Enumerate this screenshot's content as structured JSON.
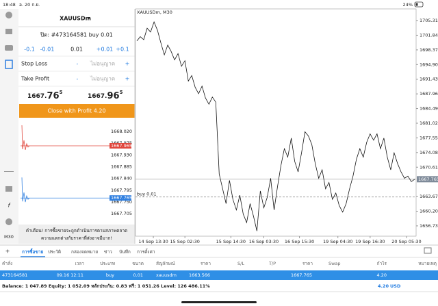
{
  "status_bar": {
    "time": "18:48",
    "date": "อ. 20 ก.ย.",
    "battery": "24%"
  },
  "order_panel": {
    "symbol": "XAUUSDm",
    "close_label": "ปิด: #473164581 buy 0.01",
    "volume_buttons": [
      "-0.1",
      "-0.01",
      "0.01",
      "+0.01",
      "+0.1"
    ],
    "stop_loss": {
      "label": "Stop Loss",
      "minus": "-",
      "value": "ไม่อนุญาต",
      "plus": "+"
    },
    "take_profit": {
      "label": "Take Profit",
      "minus": "-",
      "value": "ไม่อนุญาต",
      "plus": "+"
    },
    "bid": {
      "main": "1667.",
      "big": "76",
      "sup": "5"
    },
    "ask": {
      "main": "1667.",
      "big": "96",
      "sup": "5"
    },
    "close_button": "Close with Profit 4.20",
    "warning": [
      "คำเตือน! การซื้อขายจะถูกดำเนินการตามสภาพตลาด",
      "ความแตกต่างกับราคาที่ส่งอาจมีมาก!"
    ]
  },
  "mini_chart": {
    "ylim": [
      1667.679,
      1668.0515
    ],
    "yticks": [
      {
        "value": 1668.02,
        "label": "1668.020"
      },
      {
        "value": 1667.975,
        "label": "1667.975"
      },
      {
        "value": 1667.93,
        "label": "1667.930"
      },
      {
        "value": 1667.885,
        "label": "1667.885"
      },
      {
        "value": 1667.84,
        "label": "1667.840"
      },
      {
        "value": 1667.795,
        "label": "1667.795"
      },
      {
        "value": 1667.75,
        "label": "1667.750"
      },
      {
        "value": 1667.705,
        "label": "1667.705"
      }
    ],
    "ask": {
      "value": 1667.965,
      "label": "1667.965",
      "color": "#e0463c"
    },
    "bid": {
      "value": 1667.765,
      "label": "1667.765",
      "color": "#2f7fe0"
    }
  },
  "chart_data": {
    "type": "line",
    "title": "XAUUSDm, M30",
    "series": [
      {
        "name": "XAUUSDm",
        "color": "#111111",
        "values": [
          1700.5,
          1701.5,
          1700.8,
          1703.5,
          1702.6,
          1705.0,
          1703.0,
          1700.0,
          1697.2,
          1699.5,
          1698.0,
          1696.0,
          1697.5,
          1694.5,
          1695.8,
          1691.0,
          1692.3,
          1689.5,
          1688.0,
          1689.8,
          1687.0,
          1685.5,
          1687.2,
          1686.0,
          1669.0,
          1665.5,
          1662.0,
          1667.5,
          1663.0,
          1660.5,
          1664.0,
          1659.5,
          1657.5,
          1662.0,
          1659.0,
          1655.5,
          1665.0,
          1661.0,
          1663.5,
          1668.0,
          1660.5,
          1666.0,
          1671.0,
          1675.0,
          1673.0,
          1677.5,
          1672.0,
          1669.5,
          1674.0,
          1679.0,
          1678.0,
          1676.0,
          1671.5,
          1668.0,
          1670.0,
          1665.5,
          1667.0,
          1663.0,
          1664.5,
          1661.5,
          1660.0,
          1662.0,
          1665.5,
          1668.5,
          1672.5,
          1675.0,
          1673.0,
          1676.5,
          1678.5,
          1677.0,
          1678.5,
          1675.0,
          1677.5,
          1673.0,
          1670.0,
          1674.0,
          1671.5,
          1669.5,
          1668.0,
          1668.5,
          1667.2,
          1667.765
        ]
      }
    ],
    "xlim": [
      0,
      81
    ],
    "xticks": [
      {
        "value": 4.8,
        "label": "14 Sep 13:30"
      },
      {
        "value": 14,
        "label": "15 Sep 02:30"
      },
      {
        "value": 27.4,
        "label": "15 Sep 14:30"
      },
      {
        "value": 37,
        "label": "16 Sep 03:30"
      },
      {
        "value": 47.4,
        "label": "16 Sep 15:30"
      },
      {
        "value": 58.6,
        "label": "19 Sep 04:30"
      },
      {
        "value": 68,
        "label": "19 Sep 16:30"
      },
      {
        "value": 78.6,
        "label": "20 Sep 05:30"
      }
    ],
    "ylim": [
      1654.29,
      1708.07
    ],
    "yticks": [
      {
        "value": 1705.31,
        "label": "1705.310"
      },
      {
        "value": 1701.84,
        "label": "1701.840"
      },
      {
        "value": 1698.37,
        "label": "1698.370"
      },
      {
        "value": 1694.9,
        "label": "1694.900"
      },
      {
        "value": 1691.43,
        "label": "1691.430"
      },
      {
        "value": 1687.96,
        "label": "1687.960"
      },
      {
        "value": 1684.49,
        "label": "1684.490"
      },
      {
        "value": 1681.02,
        "label": "1681.020"
      },
      {
        "value": 1677.55,
        "label": "1677.550"
      },
      {
        "value": 1674.08,
        "label": "1674.080"
      },
      {
        "value": 1670.61,
        "label": "1670.610"
      },
      {
        "value": 1663.67,
        "label": "1663.670"
      },
      {
        "value": 1660.2,
        "label": "1660.200"
      },
      {
        "value": 1656.73,
        "label": "1656.730"
      }
    ],
    "current_price": 1667.765,
    "order_line": {
      "label": "buy 0.01",
      "value": 1663.566
    },
    "grid": false
  },
  "tabs": [
    "การซื้อขาย",
    "ประวัติ",
    "กล่องจดหมาย",
    "ข่าว",
    "บันทึก",
    "การตั้งค่า"
  ],
  "table": {
    "headers": [
      "คำสั่ง",
      "เวลา",
      "ประเภท",
      "ขนาด",
      "สัญลักษณ์",
      "ราคา",
      "S/L",
      "T/P",
      "ราคา",
      "Swap",
      "กำไร",
      "หมายเหตุ"
    ],
    "rows": [
      [
        "473164581",
        "09.16 12:11",
        "buy",
        "0.01",
        "xauusdm",
        "1663.566",
        null,
        null,
        "1667.765",
        null,
        "4.20",
        null
      ]
    ]
  },
  "footer": {
    "summary": "Balance: 1 047.89 Equity: 1 052.09 หลักประกัน: 0.83 ฟรี: 1 051.26 Level: 126 486.11%",
    "profit": "4.20",
    "currency": "USD"
  }
}
